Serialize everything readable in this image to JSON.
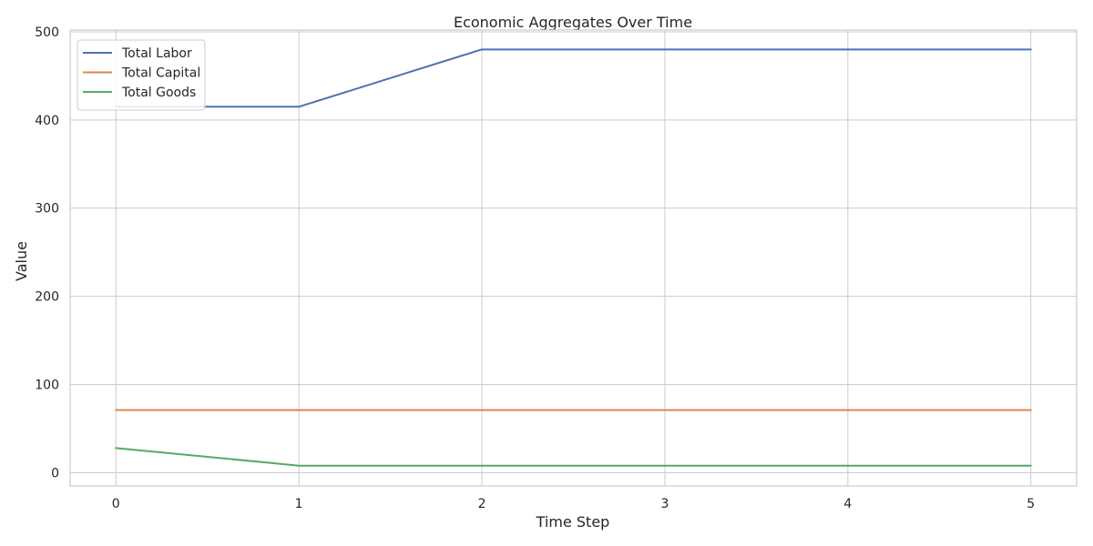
{
  "chart_data": {
    "type": "line",
    "title": "Economic Aggregates Over Time",
    "xlabel": "Time Step",
    "ylabel": "Value",
    "x": [
      0,
      1,
      2,
      3,
      4,
      5
    ],
    "xlim": [
      -0.25,
      5.25
    ],
    "ylim": [
      -15,
      502
    ],
    "xticks": [
      0,
      1,
      2,
      3,
      4,
      5
    ],
    "yticks": [
      0,
      100,
      200,
      300,
      400,
      500
    ],
    "grid": true,
    "legend_position": "top-left",
    "series": [
      {
        "name": "Total Labor",
        "color": "#4c72b0",
        "values": [
          415,
          415,
          480,
          480,
          480,
          480
        ]
      },
      {
        "name": "Total Capital",
        "color": "#dd8452",
        "values": [
          71,
          71,
          71,
          71,
          71,
          71
        ]
      },
      {
        "name": "Total Goods",
        "color": "#55a868",
        "values": [
          28,
          8,
          8,
          8,
          8,
          8
        ]
      }
    ]
  }
}
